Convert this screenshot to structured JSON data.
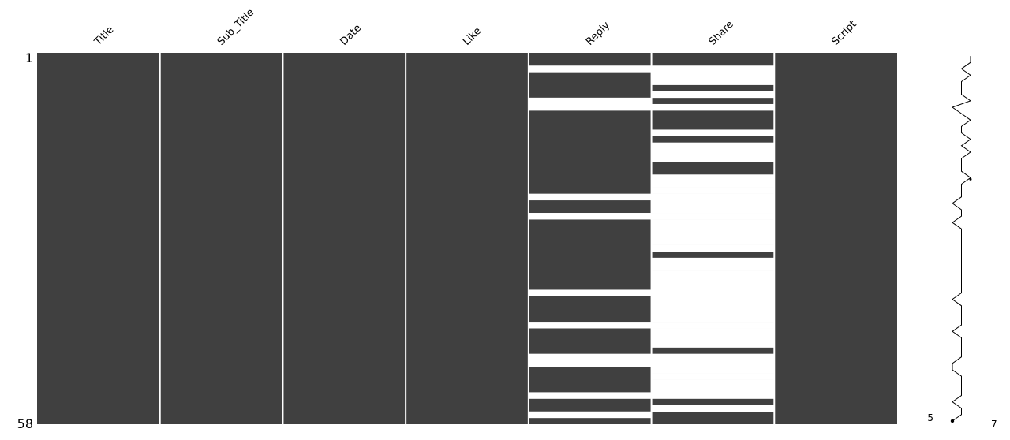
{
  "chart_data": {
    "type": "missingness-matrix",
    "columns": [
      "Title",
      "Sub_Title",
      "Date",
      "Like",
      "Reply",
      "Share",
      "Script"
    ],
    "n_rows": 58,
    "row_labels": {
      "top": "1",
      "bottom": "58"
    },
    "present_color": "#404040",
    "missing_color": "#ffffff",
    "missing_rows": {
      "Title": [],
      "Sub_Title": [],
      "Date": [],
      "Like": [],
      "Reply": [
        3,
        8,
        9,
        23,
        26,
        38,
        43,
        48,
        49,
        54,
        57
      ],
      "Share": [
        3,
        4,
        5,
        7,
        9,
        13,
        15,
        16,
        17,
        20,
        21,
        22,
        23,
        24,
        25,
        26,
        27,
        28,
        29,
        30,
        31,
        33,
        34,
        35,
        36,
        37,
        38,
        39,
        40,
        41,
        42,
        43,
        44,
        45,
        46,
        48,
        49,
        50,
        51,
        52,
        53,
        54,
        56
      ]
    },
    "sparkline": {
      "min_value": 5,
      "max_value": 7,
      "min_label": "5",
      "max_label": "7",
      "values": [
        7,
        7,
        6,
        7,
        6,
        6,
        6,
        7,
        5,
        6,
        7,
        6,
        6,
        7,
        6,
        7,
        6,
        6,
        6,
        7,
        6,
        6,
        6,
        5,
        6,
        6,
        5,
        6,
        6,
        6,
        6,
        6,
        6,
        6,
        6,
        6,
        6,
        6,
        5,
        6,
        6,
        6,
        6,
        5,
        6,
        6,
        6,
        6,
        5,
        5,
        6,
        6,
        6,
        6,
        5,
        6,
        6,
        5
      ]
    }
  }
}
